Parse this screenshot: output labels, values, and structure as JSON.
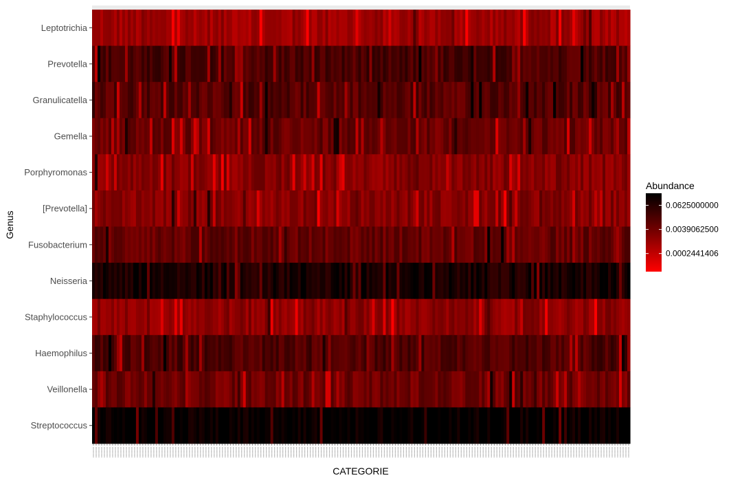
{
  "chart_data": {
    "type": "heatmap",
    "xlabel": "CATEGORIE",
    "ylabel": "Genus",
    "rows": [
      "Leptotrichia",
      "Prevotella",
      "Granulicatella",
      "Gemella",
      "Porphyromonas",
      "[Prevotella]",
      "Fusobacterium",
      "Neisseria",
      "Staphylococcus",
      "Haemophilus",
      "Veillonella",
      "Streptococcus"
    ],
    "column_count": 196,
    "row_profiles": [
      {
        "genus": "Leptotrichia",
        "typical_log4_abundance": -5.0
      },
      {
        "genus": "Prevotella",
        "typical_log4_abundance": -2.9
      },
      {
        "genus": "Granulicatella",
        "typical_log4_abundance": -3.2
      },
      {
        "genus": "Gemella",
        "typical_log4_abundance": -3.7
      },
      {
        "genus": "Porphyromonas",
        "typical_log4_abundance": -4.4
      },
      {
        "genus": "[Prevotella]",
        "typical_log4_abundance": -4.4
      },
      {
        "genus": "Fusobacterium",
        "typical_log4_abundance": -3.6
      },
      {
        "genus": "Neisseria",
        "typical_log4_abundance": -1.6
      },
      {
        "genus": "Staphylococcus",
        "typical_log4_abundance": -4.6
      },
      {
        "genus": "Haemophilus",
        "typical_log4_abundance": -3.0
      },
      {
        "genus": "Veillonella",
        "typical_log4_abundance": -3.8
      },
      {
        "genus": "Streptococcus",
        "typical_log4_abundance": -1.0
      }
    ],
    "color_scale": {
      "title": "Abundance",
      "type": "log4",
      "low_color": "#ff0000",
      "high_color": "#000000",
      "breaks": [
        {
          "label": "0.0625000000",
          "value": 0.0625
        },
        {
          "label": "0.0039062500",
          "value": 0.00390625
        },
        {
          "label": "0.0002441406",
          "value": 0.0002441406
        }
      ],
      "range": [
        3.05e-05,
        0.25
      ]
    },
    "legend_position": "right",
    "grid": false
  }
}
